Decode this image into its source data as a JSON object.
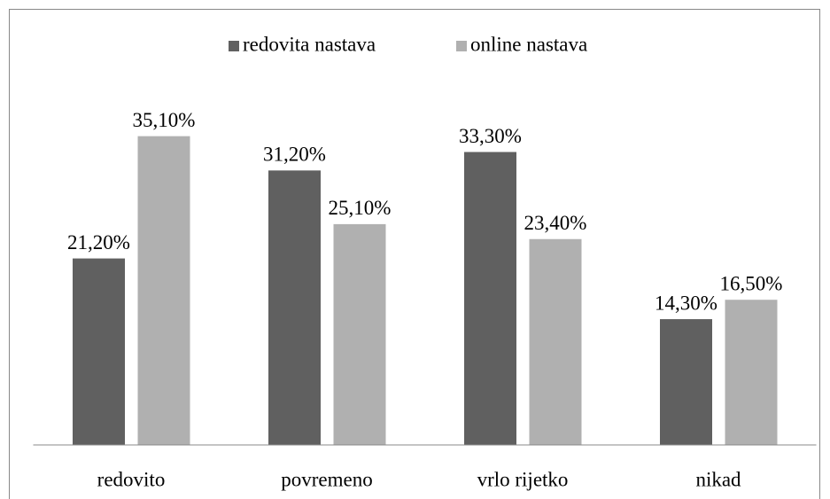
{
  "chart_data": {
    "type": "bar",
    "categories": [
      "redovito",
      "povremeno",
      "vrlo rijetko",
      "nikad"
    ],
    "series": [
      {
        "name": "redovita nastava",
        "color": "#606060",
        "values": [
          21.2,
          31.2,
          33.3,
          14.3
        ],
        "value_labels": [
          "21,20%",
          "31,20%",
          "33,30%",
          "14,30%"
        ]
      },
      {
        "name": "online nastava",
        "color": "#b0b0b0",
        "values": [
          35.1,
          25.1,
          23.4,
          16.5
        ],
        "value_labels": [
          "35,10%",
          "25,10%",
          "23,40%",
          "16,50%"
        ]
      }
    ],
    "ylim": [
      0,
      40
    ],
    "legend": "top"
  }
}
